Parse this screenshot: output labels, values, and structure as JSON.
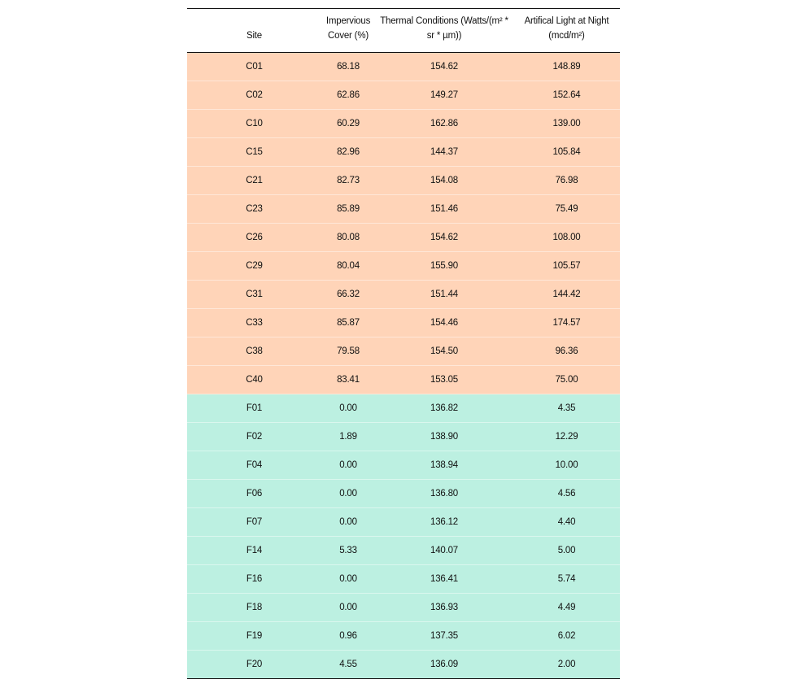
{
  "table": {
    "headers": {
      "site": "Site",
      "impervious_line1": "Impervious",
      "impervious_line2": "Cover (%)",
      "thermal_line1": "Thermal Conditions (Watts/(m² *",
      "thermal_line2": "sr * µm))",
      "alan_line1": "Artifical Light at Night",
      "alan_line2": "(mcd/m²)"
    },
    "colors": {
      "city_rows": "#ffd4b8",
      "forest_rows": "#bcf0e1"
    },
    "rows": [
      {
        "site": "C01",
        "impervious": "68.18",
        "thermal": "154.62",
        "alan": "148.89",
        "group": "c"
      },
      {
        "site": "C02",
        "impervious": "62.86",
        "thermal": "149.27",
        "alan": "152.64",
        "group": "c"
      },
      {
        "site": "C10",
        "impervious": "60.29",
        "thermal": "162.86",
        "alan": "139.00",
        "group": "c"
      },
      {
        "site": "C15",
        "impervious": "82.96",
        "thermal": "144.37",
        "alan": "105.84",
        "group": "c"
      },
      {
        "site": "C21",
        "impervious": "82.73",
        "thermal": "154.08",
        "alan": "76.98",
        "group": "c"
      },
      {
        "site": "C23",
        "impervious": "85.89",
        "thermal": "151.46",
        "alan": "75.49",
        "group": "c"
      },
      {
        "site": "C26",
        "impervious": "80.08",
        "thermal": "154.62",
        "alan": "108.00",
        "group": "c"
      },
      {
        "site": "C29",
        "impervious": "80.04",
        "thermal": "155.90",
        "alan": "105.57",
        "group": "c"
      },
      {
        "site": "C31",
        "impervious": "66.32",
        "thermal": "151.44",
        "alan": "144.42",
        "group": "c"
      },
      {
        "site": "C33",
        "impervious": "85.87",
        "thermal": "154.46",
        "alan": "174.57",
        "group": "c"
      },
      {
        "site": "C38",
        "impervious": "79.58",
        "thermal": "154.50",
        "alan": "96.36",
        "group": "c"
      },
      {
        "site": "C40",
        "impervious": "83.41",
        "thermal": "153.05",
        "alan": "75.00",
        "group": "c"
      },
      {
        "site": "F01",
        "impervious": "0.00",
        "thermal": "136.82",
        "alan": "4.35",
        "group": "f"
      },
      {
        "site": "F02",
        "impervious": "1.89",
        "thermal": "138.90",
        "alan": "12.29",
        "group": "f"
      },
      {
        "site": "F04",
        "impervious": "0.00",
        "thermal": "138.94",
        "alan": "10.00",
        "group": "f"
      },
      {
        "site": "F06",
        "impervious": "0.00",
        "thermal": "136.80",
        "alan": "4.56",
        "group": "f"
      },
      {
        "site": "F07",
        "impervious": "0.00",
        "thermal": "136.12",
        "alan": "4.40",
        "group": "f"
      },
      {
        "site": "F14",
        "impervious": "5.33",
        "thermal": "140.07",
        "alan": "5.00",
        "group": "f"
      },
      {
        "site": "F16",
        "impervious": "0.00",
        "thermal": "136.41",
        "alan": "5.74",
        "group": "f"
      },
      {
        "site": "F18",
        "impervious": "0.00",
        "thermal": "136.93",
        "alan": "4.49",
        "group": "f"
      },
      {
        "site": "F19",
        "impervious": "0.96",
        "thermal": "137.35",
        "alan": "6.02",
        "group": "f"
      },
      {
        "site": "F20",
        "impervious": "4.55",
        "thermal": "136.09",
        "alan": "2.00",
        "group": "f"
      }
    ]
  }
}
